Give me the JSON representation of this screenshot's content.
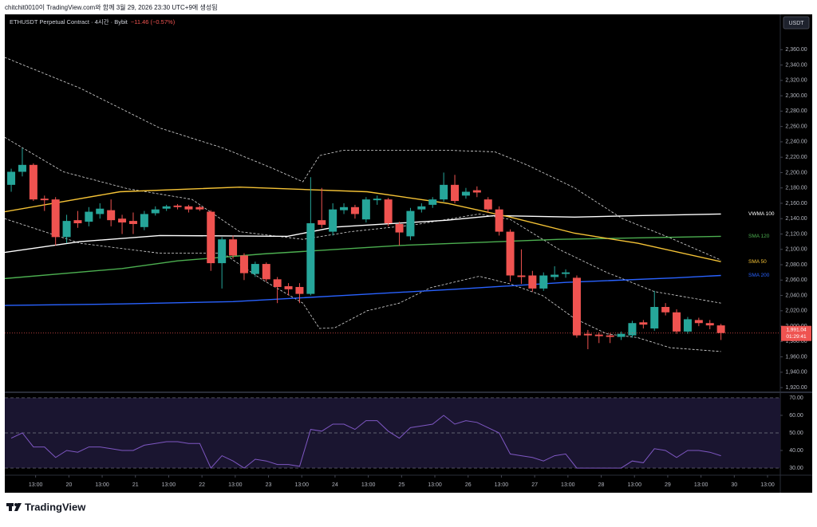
{
  "header": {
    "caption": "chitchit0010이 TradingView.com와 함께 3월 29, 2026 23:30 UTC+9에 생성됨"
  },
  "chart_data": [
    {
      "type": "candlestick",
      "title": "ETHUSDT Perpetual Contract · 4시간 · Bybit",
      "change": "−11.46 (−0.57%)",
      "currency": "USDT",
      "up_color": "#26a69a",
      "down_color": "#ef5350",
      "open": [
        2184,
        2201,
        2210,
        2166,
        2165,
        2116,
        2138,
        2136,
        2146,
        2151,
        2140,
        2137,
        2129,
        2147,
        2153,
        2157,
        2156,
        2155,
        2149,
        2082,
        2113,
        2092,
        2068,
        2081,
        2061,
        2052,
        2051,
        2042,
        2138,
        2123,
        2151,
        2155,
        2139,
        2164,
        2165,
        2133,
        2117,
        2152,
        2158,
        2165,
        2184,
        2170,
        2177,
        2165,
        2152,
        2123,
        2066,
        2066,
        2049,
        2064,
        2068,
        2063,
        1990,
        1989,
        1988,
        1986,
        1988,
        2005,
        1997,
        2025,
        2018,
        1993,
        2008,
        2004,
        2001
      ],
      "close": [
        2201,
        2210,
        2165,
        2164,
        2116,
        2137,
        2134,
        2149,
        2153,
        2138,
        2135,
        2133,
        2146,
        2152,
        2156,
        2155,
        2152,
        2152,
        2082,
        2113,
        2092,
        2069,
        2081,
        2061,
        2051,
        2048,
        2042,
        2134,
        2132,
        2152,
        2155,
        2146,
        2165,
        2166,
        2134,
        2122,
        2150,
        2156,
        2165,
        2184,
        2163,
        2175,
        2174,
        2152,
        2123,
        2066,
        2064,
        2049,
        2066,
        2067,
        2070,
        1988,
        1988,
        1987,
        1986,
        1990,
        2004,
        2002,
        2025,
        2018,
        1993,
        2009,
        2004,
        2001,
        1991.04
      ],
      "high": [
        2205,
        2232,
        2212,
        2170,
        2168,
        2145,
        2150,
        2155,
        2160,
        2165,
        2145,
        2148,
        2150,
        2156,
        2158,
        2159,
        2158,
        2157,
        2151,
        2116,
        2118,
        2095,
        2084,
        2083,
        2064,
        2056,
        2056,
        2194,
        2180,
        2160,
        2160,
        2158,
        2168,
        2170,
        2167,
        2136,
        2154,
        2160,
        2168,
        2200,
        2197,
        2180,
        2182,
        2168,
        2156,
        2126,
        2100,
        2072,
        2070,
        2078,
        2074,
        2066,
        1995,
        1992,
        1991,
        1993,
        2007,
        2008,
        2046,
        2030,
        2022,
        2012,
        2011,
        2008,
        2003
      ],
      "low": [
        2175,
        2195,
        2163,
        2150,
        2105,
        2108,
        2128,
        2130,
        2140,
        2130,
        2120,
        2120,
        2125,
        2144,
        2150,
        2152,
        2148,
        2150,
        2072,
        2049,
        2088,
        2060,
        2064,
        2058,
        2030,
        2040,
        2030,
        2040,
        2128,
        2118,
        2146,
        2140,
        2135,
        2158,
        2130,
        2105,
        2112,
        2148,
        2154,
        2162,
        2160,
        2166,
        2168,
        2148,
        2118,
        2058,
        2055,
        2045,
        2046,
        2060,
        2063,
        1985,
        1970,
        1978,
        1978,
        1982,
        1985,
        1997,
        1994,
        2014,
        1990,
        1990,
        2000,
        1996,
        1982
      ],
      "lines": [
        {
          "color": "#d8d8d8",
          "dashed": true,
          "x": [
            -0.6,
            6.2,
            13.4,
            19.1,
            23.5,
            26.3,
            27.8,
            29.9,
            39.3,
            43.6,
            46.5,
            50.8,
            55.1,
            59.4,
            64
          ],
          "values": [
            2350,
            2310,
            2258,
            2232,
            2206,
            2188,
            2222,
            2229,
            2229,
            2227,
            2210,
            2180,
            2140,
            2115,
            2086
          ]
        },
        {
          "color": "#d8d8d8",
          "dashed": true,
          "x": [
            -0.6,
            4.7,
            10.5,
            16.3,
            20.6,
            26.3,
            30.6,
            36.4,
            42.2,
            45,
            49.4,
            53.7,
            58,
            64
          ],
          "values": [
            2246,
            2201,
            2179,
            2165,
            2123,
            2113,
            2123,
            2132,
            2146,
            2139,
            2100,
            2070,
            2045,
            2030
          ]
        },
        {
          "color": "#d8d8d8",
          "dashed": true,
          "x": [
            -0.6,
            6.2,
            13.4,
            19.1,
            22.7,
            26.3,
            27.8,
            29.2,
            32.1,
            35,
            37.8,
            42.2,
            45,
            47.9,
            50.8,
            53.7,
            56.5,
            59.4,
            64
          ],
          "values": [
            2140,
            2108,
            2095,
            2095,
            2060,
            2030,
            1997,
            1998,
            2020,
            2030,
            2050,
            2065,
            2055,
            2040,
            2010,
            1990,
            1985,
            1972,
            1967
          ]
        },
        {
          "name": "VWMA 100",
          "color": "#ffffff",
          "x": [
            -0.6,
            6.2,
            13.4,
            24.9,
            29.2,
            39.3,
            43.6,
            50.8,
            56.5,
            64
          ],
          "values": [
            2096,
            2110,
            2118,
            2117,
            2129,
            2138,
            2144,
            2142,
            2144,
            2146
          ]
        },
        {
          "name": "SMA 120",
          "color": "#4caf50",
          "x": [
            -0.6,
            10,
            15,
            22.7,
            35,
            49.4,
            64
          ],
          "values": [
            2062,
            2075,
            2085,
            2094,
            2105,
            2113,
            2117
          ]
        },
        {
          "name": "SMA 50",
          "color": "#f5c336",
          "x": [
            -0.6,
            9.8,
            20.6,
            26.3,
            32.1,
            39.3,
            45,
            50.8,
            56.5,
            64
          ],
          "values": [
            2149,
            2175,
            2181,
            2178,
            2175,
            2160,
            2142,
            2121,
            2108,
            2084
          ]
        },
        {
          "name": "SMA 200",
          "color": "#2962ff",
          "x": [
            -0.6,
            10,
            20,
            30,
            40,
            50,
            60,
            64
          ],
          "values": [
            2027,
            2029,
            2032,
            2040,
            2048,
            2057,
            2063,
            2066
          ]
        }
      ],
      "last_price": {
        "value": 1991.04,
        "label": "1,991.04",
        "countdown": "01:29:41"
      },
      "xlim": [
        -0.58,
        69.35
      ],
      "xticks": [
        {
          "value": 2.2,
          "label": "13:00"
        },
        {
          "value": 5.2,
          "label": "20"
        },
        {
          "value": 8.2,
          "label": "13:00"
        },
        {
          "value": 11.2,
          "label": "21"
        },
        {
          "value": 14.2,
          "label": "13:00"
        },
        {
          "value": 17.2,
          "label": "22"
        },
        {
          "value": 20.2,
          "label": "13:00"
        },
        {
          "value": 23.2,
          "label": "23"
        },
        {
          "value": 26.2,
          "label": "13:00"
        },
        {
          "value": 29.2,
          "label": "24"
        },
        {
          "value": 32.2,
          "label": "13:00"
        },
        {
          "value": 35.2,
          "label": "25"
        },
        {
          "value": 38.2,
          "label": "13:00"
        },
        {
          "value": 41.2,
          "label": "26"
        },
        {
          "value": 44.2,
          "label": "13:00"
        },
        {
          "value": 47.2,
          "label": "27"
        },
        {
          "value": 50.2,
          "label": "13:00"
        },
        {
          "value": 53.2,
          "label": "28"
        },
        {
          "value": 56.2,
          "label": "13:00"
        },
        {
          "value": 59.2,
          "label": "29"
        },
        {
          "value": 62.2,
          "label": "13:00"
        },
        {
          "value": 65.2,
          "label": "30"
        },
        {
          "value": 68.2,
          "label": "13:00"
        }
      ],
      "ylim": [
        1916,
        2406
      ],
      "yticks": [
        {
          "value": 1920,
          "label": "1,920.00"
        },
        {
          "value": 1940,
          "label": "1,940.00"
        },
        {
          "value": 1960,
          "label": "1,960.00"
        },
        {
          "value": 1980,
          "label": "1,980.00"
        },
        {
          "value": 2000,
          "label": "2,000.00"
        },
        {
          "value": 2020,
          "label": "2,020.00"
        },
        {
          "value": 2040,
          "label": "2,040.00"
        },
        {
          "value": 2060,
          "label": "2,060.00"
        },
        {
          "value": 2080,
          "label": "2,080.00"
        },
        {
          "value": 2100,
          "label": "2,100.00"
        },
        {
          "value": 2120,
          "label": "2,120.00"
        },
        {
          "value": 2140,
          "label": "2,140.00"
        },
        {
          "value": 2160,
          "label": "2,160.00"
        },
        {
          "value": 2180,
          "label": "2,180.00"
        },
        {
          "value": 2200,
          "label": "2,200.00"
        },
        {
          "value": 2220,
          "label": "2,220.00"
        },
        {
          "value": 2240,
          "label": "2,240.00"
        },
        {
          "value": 2260,
          "label": "2,260.00"
        },
        {
          "value": 2280,
          "label": "2,280.00"
        },
        {
          "value": 2300,
          "label": "2,300.00"
        },
        {
          "value": 2320,
          "label": "2,320.00"
        },
        {
          "value": 2340,
          "label": "2,340.00"
        },
        {
          "value": 2360,
          "label": "2,360.00"
        }
      ]
    },
    {
      "type": "line",
      "color": "#7e57c2",
      "band_color": "#1a1530",
      "values": [
        47,
        50,
        42,
        42,
        36,
        40,
        39,
        42,
        42,
        41,
        40,
        40,
        43,
        44,
        45,
        45,
        44,
        44,
        30,
        37,
        34,
        30,
        35,
        34,
        32,
        32,
        31,
        52,
        51,
        55,
        55,
        52,
        57,
        57,
        51,
        47,
        53,
        54,
        55,
        60,
        55,
        57,
        56,
        53,
        50,
        38,
        37,
        36,
        34,
        37,
        38,
        30,
        30,
        30,
        30,
        30,
        34,
        33,
        41,
        40,
        36,
        40,
        40,
        39,
        37
      ],
      "band": [
        30,
        70
      ],
      "ylim": [
        27.3,
        72.7
      ],
      "yticks": [
        {
          "value": 30,
          "label": "30.00"
        },
        {
          "value": 40,
          "label": "40.00"
        },
        {
          "value": 50,
          "label": "50.00"
        },
        {
          "value": 60,
          "label": "60.00"
        },
        {
          "value": 70,
          "label": "70.00"
        }
      ]
    }
  ],
  "footer": {
    "logo": "TradingView"
  }
}
